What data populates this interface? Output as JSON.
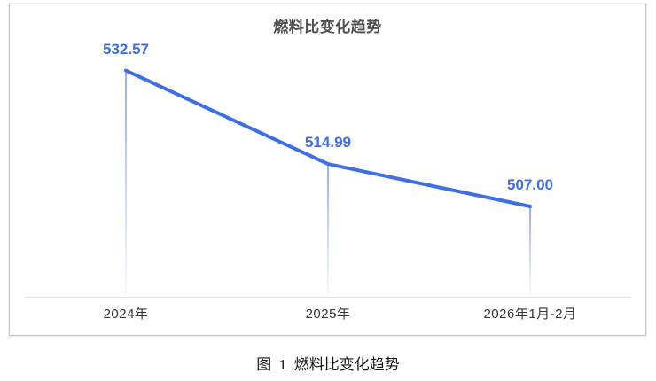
{
  "chart_data": {
    "type": "line",
    "title": "燃料比变化趋势",
    "categories": [
      "2024年",
      "2025年",
      "2026年1月-2月"
    ],
    "values": [
      532.57,
      514.99,
      507.0
    ],
    "data_labels": [
      "532.57",
      "514.99",
      "507.00"
    ],
    "ylim": [
      490,
      545
    ],
    "xlabel": "",
    "ylabel": "",
    "grid": false,
    "legend_position": "none",
    "line_color": "#3D6EE8",
    "label_color": "#3D6EE8",
    "axis_line_color": "#E2E2E2",
    "axis_label_color": "#333333",
    "title_color": "#4F4F4F"
  },
  "figure_caption": "图  1  燃料比变化趋势"
}
